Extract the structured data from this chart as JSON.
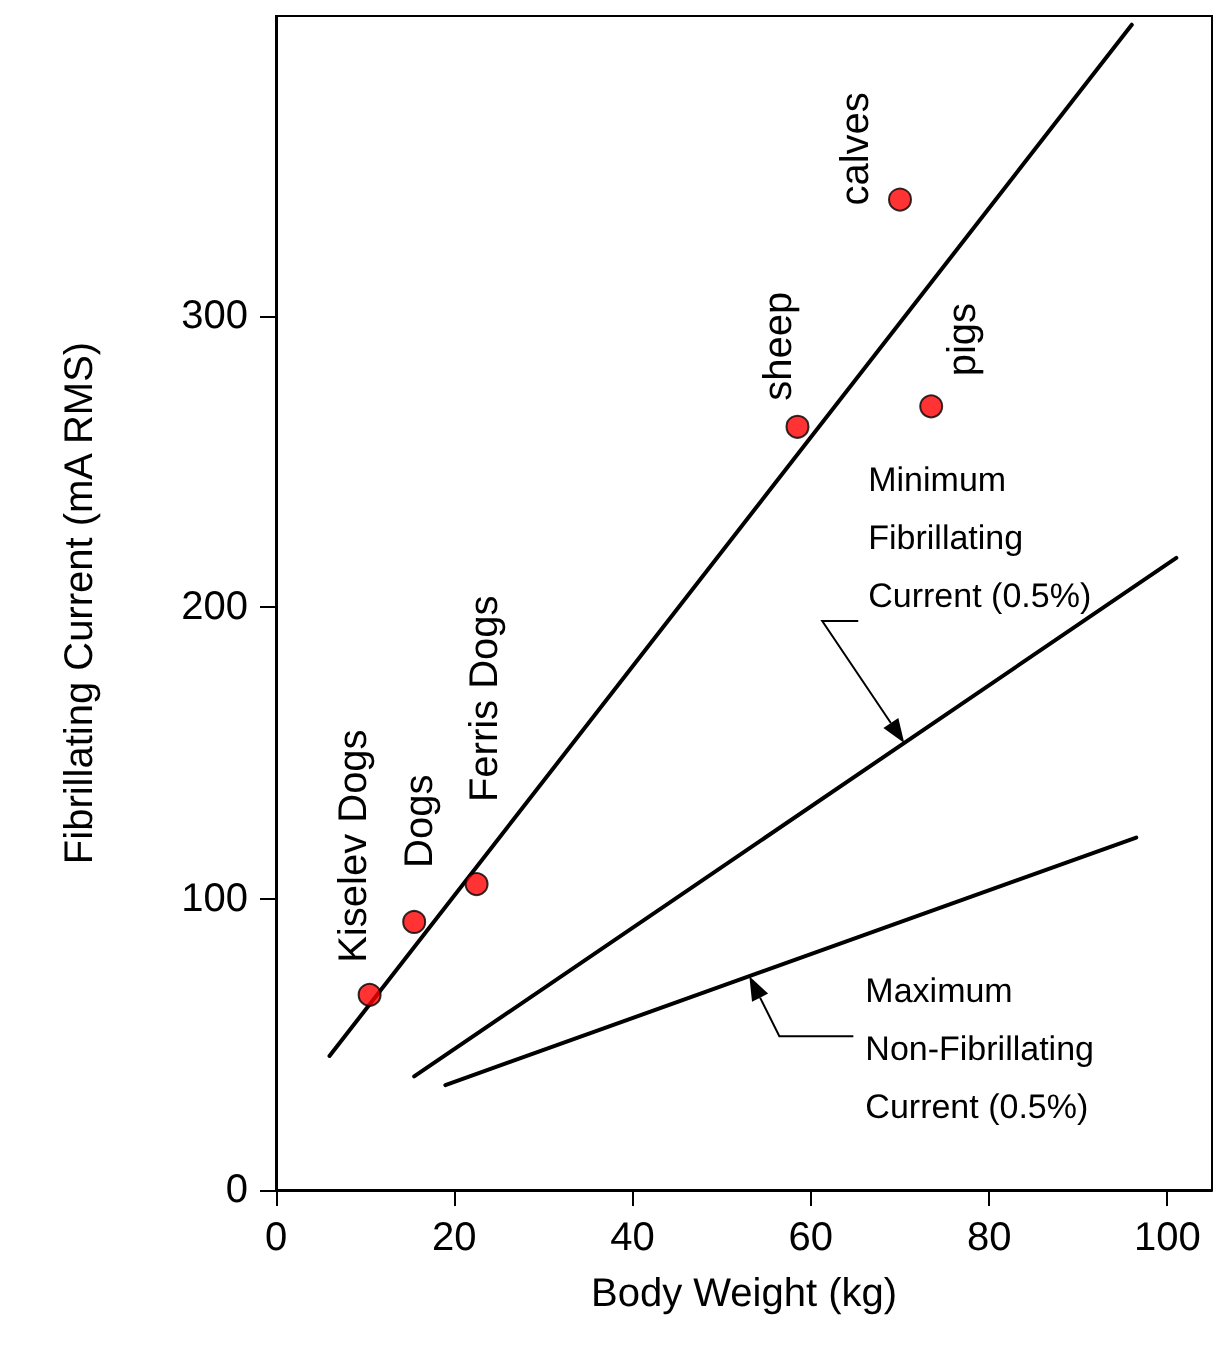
{
  "chart_data": {
    "type": "scatter",
    "xlabel": "Body Weight (kg)",
    "ylabel": "Fibrillating Current (mA RMS)",
    "xlim": [
      0,
      105
    ],
    "xticks": [
      0,
      20,
      40,
      60,
      80,
      100
    ],
    "ylim": [
      0,
      403
    ],
    "yticks": [
      0,
      100,
      200,
      300
    ],
    "grid": false,
    "series": [
      {
        "color": "#ff0000",
        "marker": "circle",
        "x": [
          10.5,
          15.5,
          22.5,
          58.5,
          70,
          73.5
        ],
        "values": [
          67,
          92,
          105,
          262,
          340,
          269
        ]
      },
      {
        "type": "line",
        "marker": "none",
        "color": "#000000",
        "x": [
          6,
          96
        ],
        "values": [
          46,
          400
        ]
      },
      {
        "type": "line",
        "marker": "none",
        "color": "#000000",
        "x": [
          15.5,
          101
        ],
        "values": [
          39,
          217
        ]
      },
      {
        "type": "line",
        "marker": "none",
        "color": "#000000",
        "x": [
          19,
          96.5
        ],
        "values": [
          36,
          121
        ]
      }
    ],
    "annotations": [
      {
        "text": "Kiselev Dogs",
        "x": 10.5,
        "y": 67
      },
      {
        "text": "Dogs",
        "x": 15.5,
        "y": 92
      },
      {
        "text": "Ferris Dogs",
        "x": 22.5,
        "y": 105
      },
      {
        "text": "sheep",
        "x": 58.5,
        "y": 262
      },
      {
        "text": "calves",
        "x": 70,
        "y": 340
      },
      {
        "text": "pigs",
        "x": 73.5,
        "y": 269
      },
      "Minimum Fibrillating Current (0.5%)",
      "Maximum Non-Fibrillating Current (0.5%)"
    ]
  }
}
